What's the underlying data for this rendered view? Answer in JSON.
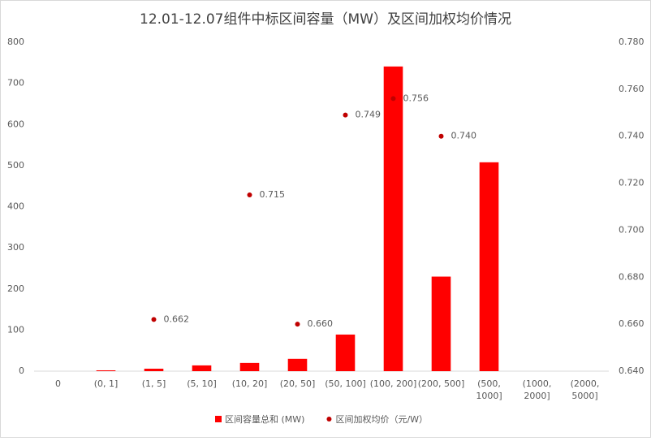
{
  "chart_data": {
    "type": "bar",
    "title": "12.01-12.07组件中标区间容量（MW）及区间加权均价情况",
    "categories": [
      "0",
      "(0, 1]",
      "(1, 5]",
      "(5, 10]",
      "(10, 20]",
      "(20, 50]",
      "(50, 100]",
      "(100, 200]",
      "(200, 500]",
      "(500, 1000]",
      "(1000, 2000]",
      "(2000, 5000]"
    ],
    "series": [
      {
        "name": "区间容量总和 (MW)",
        "type": "bar",
        "color": "#ff0000",
        "values": [
          0,
          2,
          6,
          14,
          20,
          30,
          89,
          741,
          230,
          508,
          0,
          0
        ]
      },
      {
        "name": "区间加权均价（元/W）",
        "type": "scatter",
        "axis": "y2",
        "color": "#c00000",
        "values": [
          null,
          null,
          0.662,
          null,
          0.715,
          0.66,
          0.749,
          0.756,
          0.74,
          null,
          null,
          null
        ],
        "value_labels": [
          null,
          null,
          "0.662",
          null,
          "0.715",
          "0.660",
          "0.749",
          "0.756",
          "0.740",
          null,
          null,
          null
        ]
      }
    ],
    "ylim": [
      0,
      800
    ],
    "yticks": [
      0,
      100,
      200,
      300,
      400,
      500,
      600,
      700,
      800
    ],
    "y2lim": [
      0.64,
      0.78
    ],
    "y2ticks": [
      {
        "value": 0.64,
        "label": "0.640"
      },
      {
        "value": 0.66,
        "label": "0.660"
      },
      {
        "value": 0.68,
        "label": "0.680"
      },
      {
        "value": 0.7,
        "label": "0.700"
      },
      {
        "value": 0.72,
        "label": "0.720"
      },
      {
        "value": 0.74,
        "label": "0.740"
      },
      {
        "value": 0.76,
        "label": "0.760"
      },
      {
        "value": 0.78,
        "label": "0.780"
      }
    ],
    "legend": "bottom"
  }
}
